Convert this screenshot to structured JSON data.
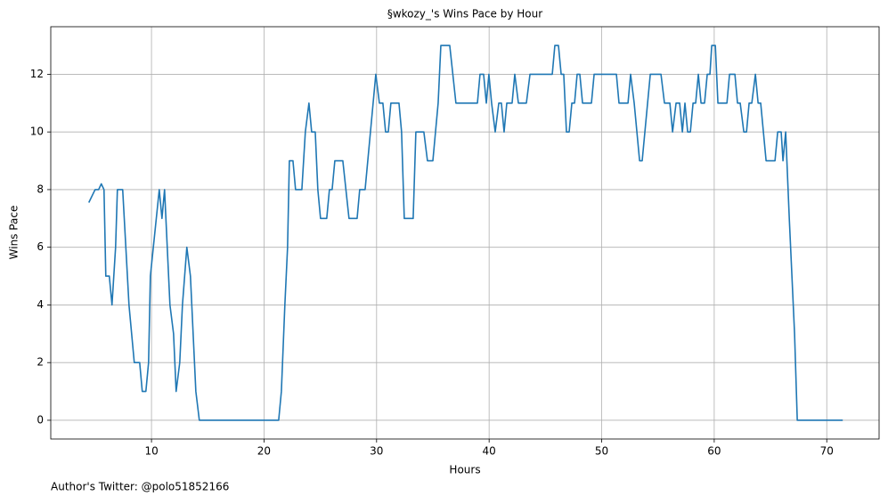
{
  "chart_data": {
    "type": "line",
    "title": "§wkozy_'s Wins Pace by Hour",
    "x_label": "Hours",
    "y_label": "Wins Pace",
    "footnote": "Author's Twitter: @polo51852166",
    "color": "#1f77b4",
    "grid": true,
    "xlim": [
      1.05,
      74.65
    ],
    "ylim": [
      -0.65,
      13.65
    ],
    "xticks": [
      10,
      20,
      30,
      40,
      50,
      60,
      70
    ],
    "yticks": [
      0,
      2,
      4,
      6,
      8,
      10,
      12
    ],
    "x": [
      4.43,
      4.99,
      5.3,
      5.54,
      5.78,
      5.94,
      6.25,
      6.49,
      6.81,
      6.97,
      7.44,
      8.0,
      8.47,
      8.95,
      9.18,
      9.5,
      9.74,
      9.9,
      10.69,
      10.93,
      11.16,
      11.64,
      11.96,
      12.19,
      12.51,
      12.75,
      13.14,
      13.46,
      13.94,
      14.25,
      21.3,
      21.54,
      21.85,
      22.09,
      22.25,
      22.57,
      22.8,
      23.36,
      23.67,
      23.99,
      24.23,
      24.55,
      24.78,
      25.02,
      25.57,
      25.81,
      26.05,
      26.29,
      27.0,
      27.55,
      28.27,
      28.5,
      28.98,
      29.93,
      30.25,
      30.56,
      30.8,
      31.04,
      31.27,
      31.99,
      32.22,
      32.46,
      33.25,
      33.49,
      34.2,
      34.52,
      35.0,
      35.47,
      35.71,
      36.5,
      37.05,
      38.96,
      39.19,
      39.51,
      39.75,
      39.98,
      40.22,
      40.54,
      40.86,
      41.09,
      41.33,
      41.57,
      42.04,
      42.28,
      42.6,
      43.31,
      43.63,
      45.61,
      45.84,
      46.16,
      46.4,
      46.63,
      46.87,
      47.11,
      47.35,
      47.59,
      47.82,
      48.06,
      48.3,
      49.09,
      49.33,
      51.31,
      51.54,
      52.34,
      52.57,
      52.89,
      53.37,
      53.6,
      54.32,
      55.27,
      55.58,
      56.06,
      56.3,
      56.61,
      56.93,
      57.17,
      57.4,
      57.64,
      57.88,
      58.12,
      58.35,
      58.59,
      58.83,
      59.14,
      59.38,
      59.62,
      59.78,
      60.1,
      60.33,
      61.13,
      61.36,
      61.84,
      62.07,
      62.31,
      62.63,
      62.87,
      63.1,
      63.34,
      63.66,
      63.9,
      64.13,
      64.61,
      65.4,
      65.64,
      65.95,
      66.11,
      66.35,
      66.67,
      67.14,
      67.38,
      71.42
    ],
    "values": [
      7.55,
      8,
      8,
      8.2,
      8,
      5,
      5,
      4,
      6,
      8,
      8,
      4,
      2,
      2,
      1,
      1,
      2,
      5,
      8,
      7,
      8,
      4,
      3,
      1,
      2,
      4,
      6,
      5,
      1,
      0,
      0,
      1,
      4,
      6,
      9,
      9,
      8,
      8,
      10,
      11,
      10,
      10,
      8,
      7,
      7,
      8,
      8,
      9,
      9,
      7,
      7,
      8,
      8,
      12,
      11,
      11,
      10,
      10,
      11,
      11,
      10,
      7,
      7,
      10,
      10,
      9,
      9,
      11,
      13,
      13,
      11,
      11,
      12,
      12,
      11,
      12,
      11,
      10,
      11,
      11,
      10,
      11,
      11,
      12,
      11,
      11,
      12,
      12,
      13,
      13,
      12,
      12,
      10,
      10,
      11,
      11,
      12,
      12,
      11,
      11,
      12,
      12,
      11,
      11,
      12,
      11,
      9,
      9,
      12,
      12,
      11,
      11,
      10,
      11,
      11,
      10,
      11,
      10,
      10,
      11,
      11,
      12,
      11,
      11,
      12,
      12,
      13,
      13,
      11,
      11,
      12,
      12,
      11,
      11,
      10,
      10,
      11,
      11,
      12,
      11,
      11,
      9,
      9,
      10,
      10,
      9,
      10,
      7,
      3,
      0,
      0
    ]
  }
}
